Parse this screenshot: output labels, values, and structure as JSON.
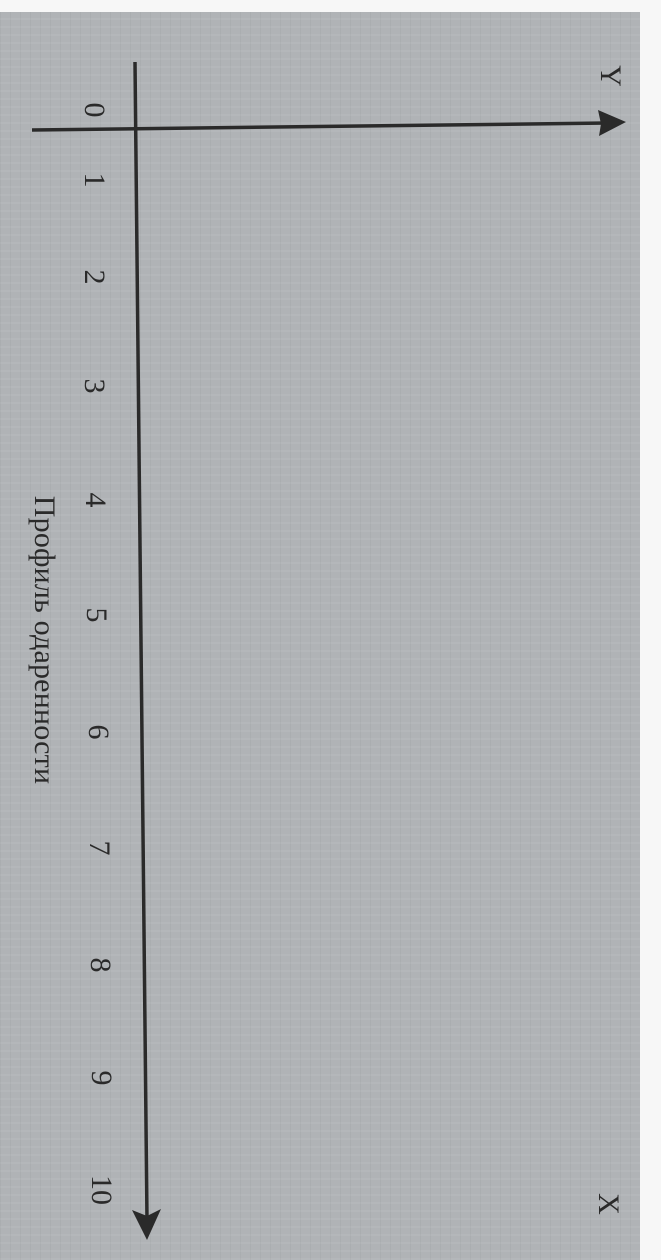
{
  "diagram": {
    "x_axis_label": "X",
    "y_axis_label": "Y",
    "ticks": [
      "0",
      "1",
      "2",
      "3",
      "4",
      "5",
      "6",
      "7",
      "8",
      "9",
      "10"
    ],
    "caption": "Профиль одаренности",
    "colors": {
      "paper": "#b0b3b6",
      "ink": "#2a2a2a",
      "margin": "#f7f7f7"
    }
  }
}
